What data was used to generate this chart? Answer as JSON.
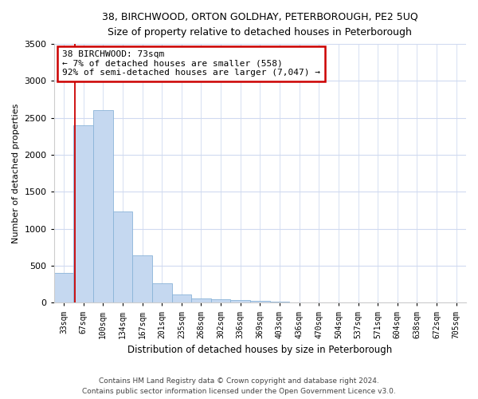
{
  "title1": "38, BIRCHWOOD, ORTON GOLDHAY, PETERBOROUGH, PE2 5UQ",
  "title2": "Size of property relative to detached houses in Peterborough",
  "xlabel": "Distribution of detached houses by size in Peterborough",
  "ylabel": "Number of detached properties",
  "categories": [
    "33sqm",
    "67sqm",
    "100sqm",
    "134sqm",
    "167sqm",
    "201sqm",
    "235sqm",
    "268sqm",
    "302sqm",
    "336sqm",
    "369sqm",
    "403sqm",
    "436sqm",
    "470sqm",
    "504sqm",
    "537sqm",
    "571sqm",
    "604sqm",
    "638sqm",
    "672sqm",
    "705sqm"
  ],
  "values": [
    400,
    2400,
    2600,
    1240,
    640,
    260,
    110,
    60,
    45,
    35,
    25,
    20,
    0,
    0,
    0,
    0,
    0,
    0,
    0,
    0,
    0
  ],
  "bar_color": "#c5d8f0",
  "bar_edge_color": "#8ab4d8",
  "highlight_color": "#cc0000",
  "red_line_x": 0.575,
  "annotation_title": "38 BIRCHWOOD: 73sqm",
  "annotation_line1": "← 7% of detached houses are smaller (558)",
  "annotation_line2": "92% of semi-detached houses are larger (7,047) →",
  "annotation_box_color": "#ffffff",
  "annotation_box_edge": "#cc0000",
  "ylim": [
    0,
    3500
  ],
  "yticks": [
    0,
    500,
    1000,
    1500,
    2000,
    2500,
    3000,
    3500
  ],
  "footer1": "Contains HM Land Registry data © Crown copyright and database right 2024.",
  "footer2": "Contains public sector information licensed under the Open Government Licence v3.0.",
  "bg_color": "#ffffff",
  "plot_bg_color": "#ffffff",
  "grid_color": "#d0daf0"
}
